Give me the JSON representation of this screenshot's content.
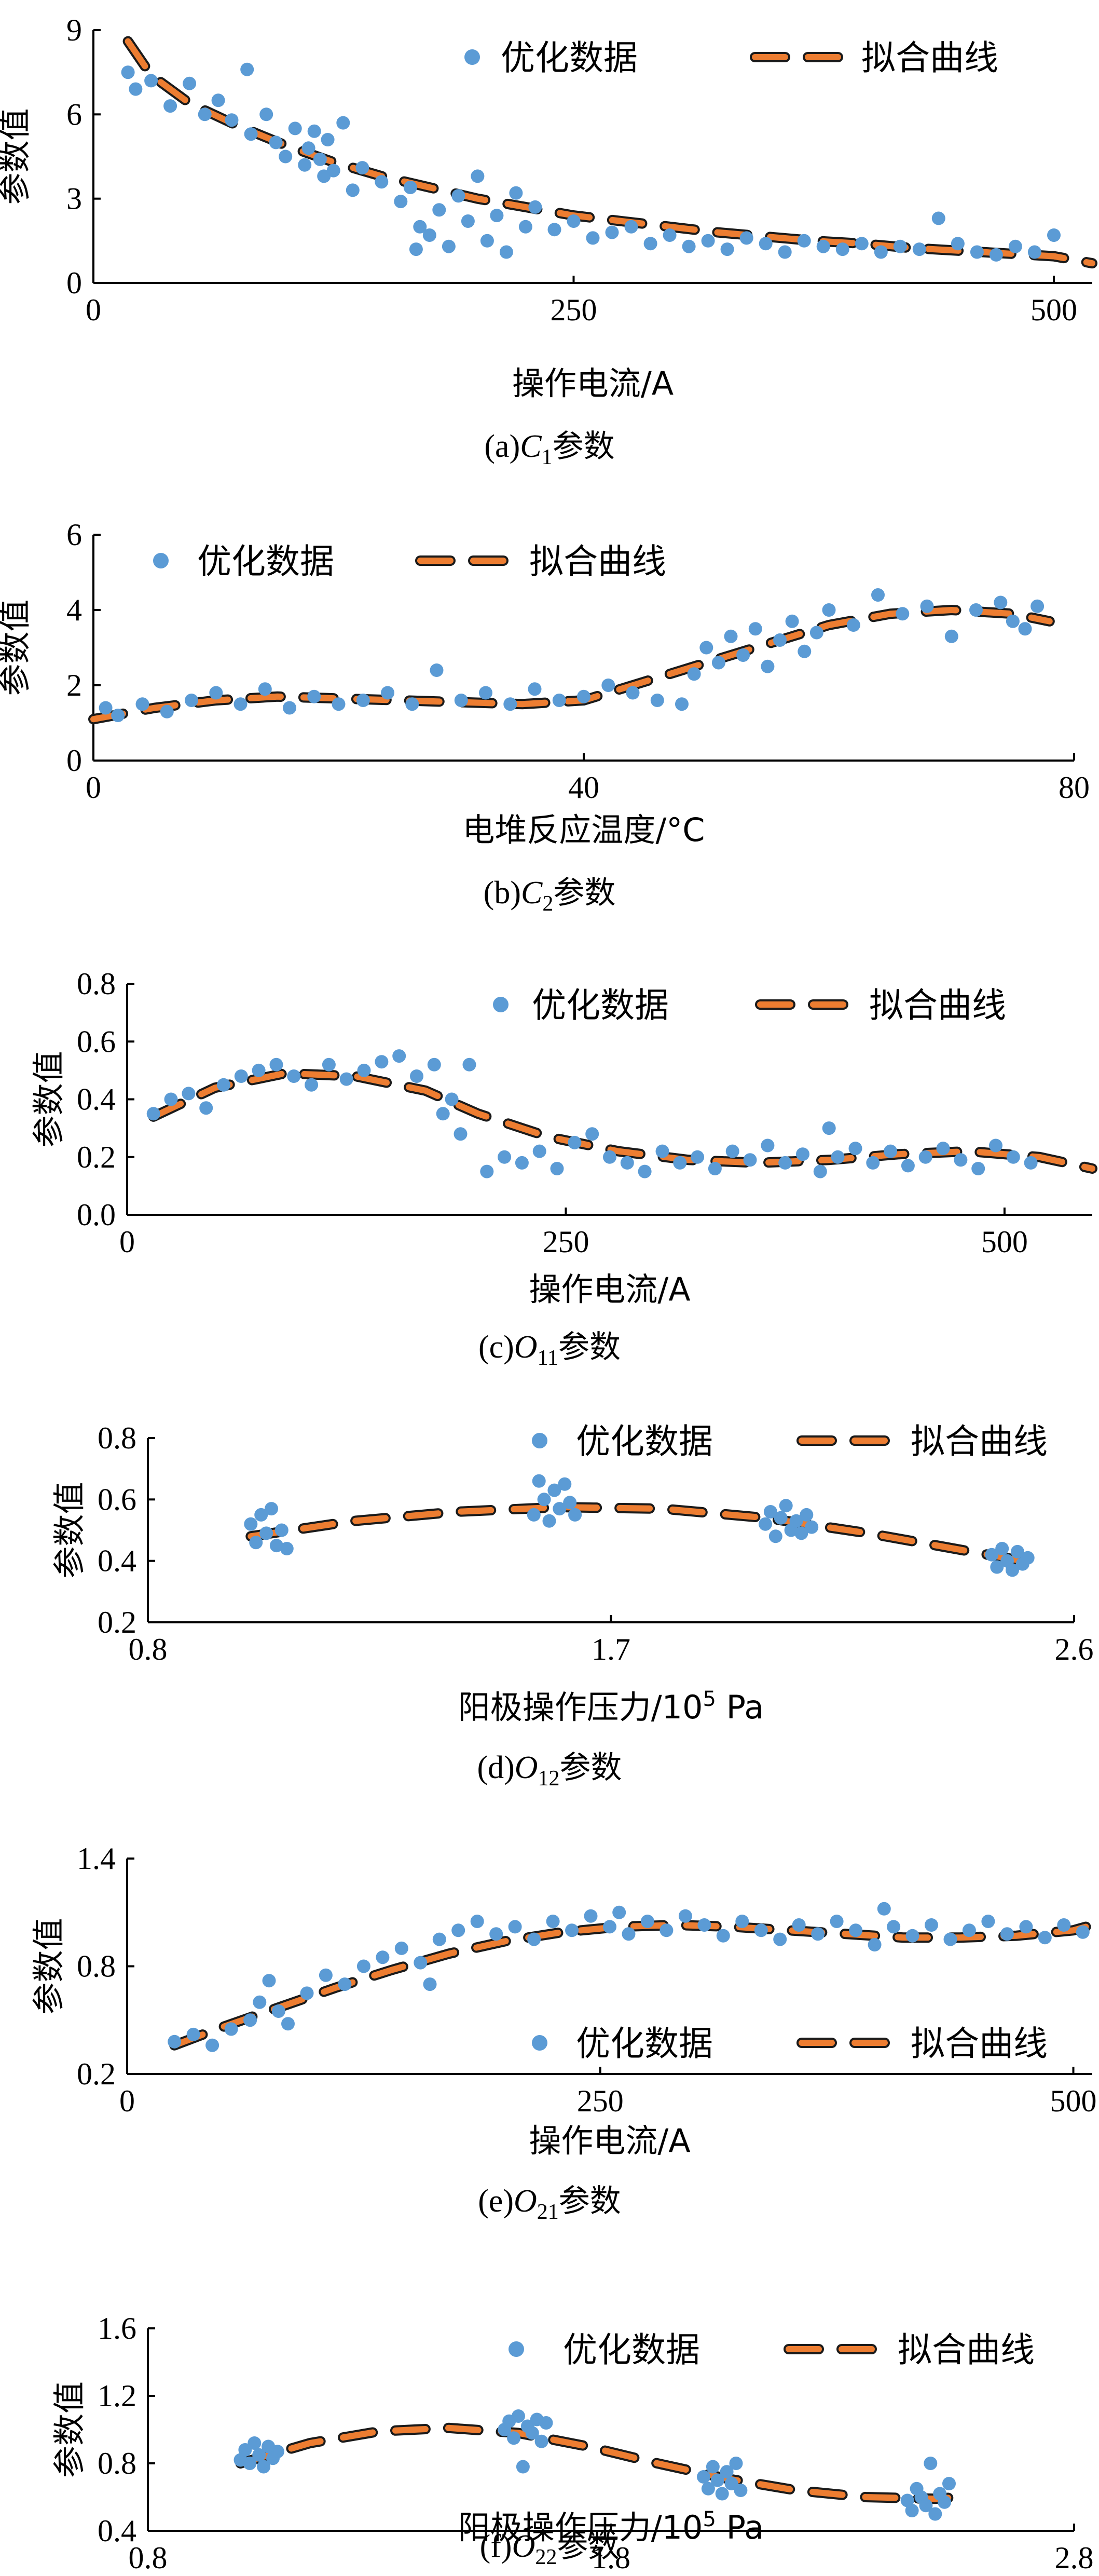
{
  "legend": {
    "points_label": "优化数据",
    "fit_label": "拟合曲线"
  },
  "colors": {
    "points": "#5b9bd5",
    "fit": "#ed7d31",
    "fit_outline": "#1a1a1a"
  },
  "chart_data": [
    {
      "type": "scatter",
      "caption": {
        "prefix": "(a)",
        "sym": "C",
        "sub": "1",
        "suffix": "参数"
      },
      "xlabel": {
        "text": "操作电流/A"
      },
      "ylabel": "参数值",
      "xlim": [
        0,
        520
      ],
      "ylim": [
        0,
        9
      ],
      "xticks": [
        0,
        250,
        500
      ],
      "xtick_labels": [
        "0",
        "250",
        "500"
      ],
      "yticks": [
        0,
        3,
        6,
        9
      ],
      "ytick_labels": [
        "0",
        "3",
        "6",
        "9"
      ],
      "legend_position": "top-right",
      "series": [
        {
          "name": "优化数据",
          "kind": "points",
          "x": [
            18,
            22,
            30,
            40,
            50,
            58,
            65,
            72,
            80,
            82,
            90,
            95,
            100,
            105,
            110,
            112,
            115,
            118,
            120,
            122,
            125,
            130,
            135,
            140,
            150,
            160,
            165,
            168,
            170,
            175,
            180,
            185,
            190,
            195,
            200,
            205,
            210,
            215,
            220,
            225,
            230,
            240,
            250,
            260,
            270,
            280,
            290,
            300,
            310,
            320,
            330,
            340,
            350,
            360,
            370,
            380,
            390,
            400,
            410,
            420,
            430,
            440,
            450,
            460,
            470,
            480,
            490,
            500
          ],
          "y": [
            7.5,
            6.9,
            7.2,
            6.3,
            7.1,
            6.0,
            6.5,
            5.8,
            7.6,
            5.3,
            6.0,
            5.0,
            4.5,
            5.5,
            4.2,
            4.8,
            5.4,
            4.4,
            3.8,
            5.1,
            4.0,
            5.7,
            3.3,
            4.1,
            3.6,
            2.9,
            3.4,
            1.2,
            2.0,
            1.7,
            2.6,
            1.3,
            3.1,
            2.2,
            3.8,
            1.5,
            2.4,
            1.1,
            3.2,
            2.0,
            2.7,
            1.9,
            2.2,
            1.6,
            1.8,
            2.0,
            1.4,
            1.7,
            1.3,
            1.5,
            1.2,
            1.6,
            1.4,
            1.1,
            1.5,
            1.3,
            1.2,
            1.4,
            1.1,
            1.3,
            1.2,
            2.3,
            1.4,
            1.1,
            1.0,
            1.3,
            1.1,
            1.7
          ]
        },
        {
          "name": "拟合曲线",
          "kind": "fit",
          "x": [
            18,
            30,
            50,
            75,
            100,
            125,
            150,
            175,
            200,
            225,
            250,
            275,
            300,
            325,
            350,
            375,
            400,
            425,
            450,
            475,
            500,
            520
          ],
          "y": [
            8.6,
            7.4,
            6.4,
            5.6,
            4.9,
            4.3,
            3.8,
            3.4,
            3.0,
            2.7,
            2.4,
            2.2,
            2.0,
            1.8,
            1.65,
            1.5,
            1.4,
            1.25,
            1.15,
            1.05,
            0.95,
            0.7
          ]
        }
      ]
    },
    {
      "type": "scatter",
      "caption": {
        "prefix": "(b)",
        "sym": "C",
        "sub": "2",
        "suffix": "参数"
      },
      "xlabel": {
        "text": "电堆反应温度/°C"
      },
      "ylabel": "参数值",
      "xlim": [
        0,
        80
      ],
      "ylim": [
        0,
        6
      ],
      "xticks": [
        0,
        40,
        80
      ],
      "xtick_labels": [
        "0",
        "40",
        "80"
      ],
      "yticks": [
        0,
        2,
        4,
        6
      ],
      "ytick_labels": [
        "0",
        "2",
        "4",
        "6"
      ],
      "legend_position": "top",
      "series": [
        {
          "name": "优化数据",
          "kind": "points",
          "x": [
            1,
            2,
            4,
            6,
            8,
            10,
            12,
            14,
            16,
            18,
            20,
            22,
            24,
            26,
            28,
            30,
            32,
            34,
            36,
            38,
            40,
            42,
            44,
            46,
            48,
            49,
            50,
            51,
            52,
            53,
            54,
            55,
            56,
            57,
            58,
            59,
            60,
            62,
            64,
            66,
            68,
            70,
            72,
            74,
            75,
            76,
            77
          ],
          "y": [
            1.4,
            1.2,
            1.5,
            1.3,
            1.6,
            1.8,
            1.5,
            1.9,
            1.4,
            1.7,
            1.5,
            1.6,
            1.8,
            1.5,
            2.4,
            1.6,
            1.8,
            1.5,
            1.9,
            1.6,
            1.7,
            2.0,
            1.8,
            1.6,
            1.5,
            2.3,
            3.0,
            2.6,
            3.3,
            2.8,
            3.5,
            2.5,
            3.2,
            3.7,
            2.9,
            3.4,
            4.0,
            3.6,
            4.4,
            3.9,
            4.1,
            3.3,
            4.0,
            4.2,
            3.7,
            3.5,
            4.1
          ]
        },
        {
          "name": "拟合曲线",
          "kind": "fit",
          "x": [
            0,
            5,
            10,
            15,
            20,
            25,
            30,
            35,
            40,
            42,
            45,
            50,
            55,
            60,
            65,
            70,
            75,
            78
          ],
          "y": [
            1.1,
            1.4,
            1.6,
            1.7,
            1.65,
            1.6,
            1.55,
            1.5,
            1.6,
            1.8,
            2.1,
            2.6,
            3.1,
            3.6,
            3.9,
            4.0,
            3.9,
            3.7
          ]
        }
      ]
    },
    {
      "type": "scatter",
      "caption": {
        "prefix": "(c)",
        "sym": "O",
        "sub": "11",
        "suffix": "参数"
      },
      "xlabel": {
        "text": "操作电流/A"
      },
      "ylabel": "参数值",
      "xlim": [
        0,
        550
      ],
      "ylim": [
        0,
        0.8
      ],
      "xticks": [
        0,
        250,
        500
      ],
      "xtick_labels": [
        "0",
        "250",
        "500"
      ],
      "yticks": [
        0,
        0.2,
        0.4,
        0.6,
        0.8
      ],
      "ytick_labels": [
        "0.0",
        "0.2",
        "0.4",
        "0.6",
        "0.8"
      ],
      "legend_position": "top-right",
      "series": [
        {
          "name": "优化数据",
          "kind": "points",
          "x": [
            15,
            25,
            35,
            45,
            55,
            65,
            75,
            85,
            95,
            105,
            115,
            125,
            135,
            145,
            155,
            165,
            175,
            180,
            185,
            190,
            195,
            205,
            215,
            225,
            235,
            245,
            255,
            265,
            275,
            285,
            295,
            305,
            315,
            325,
            335,
            345,
            355,
            365,
            375,
            385,
            395,
            400,
            405,
            415,
            425,
            435,
            445,
            455,
            465,
            475,
            485,
            495,
            505,
            515
          ],
          "y": [
            0.35,
            0.4,
            0.42,
            0.37,
            0.45,
            0.48,
            0.5,
            0.52,
            0.48,
            0.45,
            0.52,
            0.47,
            0.5,
            0.53,
            0.55,
            0.48,
            0.52,
            0.35,
            0.4,
            0.28,
            0.52,
            0.15,
            0.2,
            0.18,
            0.22,
            0.16,
            0.25,
            0.28,
            0.2,
            0.18,
            0.15,
            0.22,
            0.18,
            0.2,
            0.16,
            0.22,
            0.19,
            0.24,
            0.18,
            0.21,
            0.15,
            0.3,
            0.2,
            0.23,
            0.18,
            0.22,
            0.17,
            0.2,
            0.23,
            0.19,
            0.16,
            0.24,
            0.2,
            0.18
          ]
        },
        {
          "name": "拟合曲线",
          "kind": "fit",
          "x": [
            15,
            50,
            90,
            130,
            170,
            200,
            240,
            280,
            320,
            360,
            400,
            440,
            480,
            520,
            550
          ],
          "y": [
            0.34,
            0.44,
            0.49,
            0.48,
            0.43,
            0.35,
            0.27,
            0.22,
            0.19,
            0.18,
            0.19,
            0.21,
            0.22,
            0.2,
            0.16
          ]
        }
      ]
    },
    {
      "type": "scatter",
      "caption": {
        "prefix": "(d)",
        "sym": "O",
        "sub": "12",
        "suffix": "参数"
      },
      "xlabel": {
        "text": "阳极操作压力/10",
        "sup": "5",
        "unit": " Pa"
      },
      "ylabel": "参数值",
      "xlim": [
        0.8,
        2.6
      ],
      "ylim": [
        0.2,
        0.8
      ],
      "xticks": [
        0.8,
        1.7,
        2.6
      ],
      "xtick_labels": [
        "0.8",
        "1.7",
        "2.6"
      ],
      "yticks": [
        0.2,
        0.4,
        0.6,
        0.8
      ],
      "ytick_labels": [
        "0.2",
        "0.4",
        "0.6",
        "0.8"
      ],
      "legend_position": "top-right",
      "series": [
        {
          "name": "优化数据",
          "kind": "points",
          "x": [
            1.0,
            1.01,
            1.02,
            1.03,
            1.04,
            1.05,
            1.06,
            1.07,
            1.55,
            1.56,
            1.57,
            1.58,
            1.59,
            1.6,
            1.61,
            1.62,
            1.63,
            2.0,
            2.01,
            2.02,
            2.03,
            2.04,
            2.05,
            2.06,
            2.07,
            2.08,
            2.09,
            2.44,
            2.45,
            2.46,
            2.47,
            2.48,
            2.49,
            2.5,
            2.51
          ],
          "y": [
            0.52,
            0.46,
            0.55,
            0.49,
            0.57,
            0.45,
            0.5,
            0.44,
            0.55,
            0.66,
            0.6,
            0.53,
            0.63,
            0.57,
            0.65,
            0.59,
            0.55,
            0.52,
            0.56,
            0.48,
            0.54,
            0.58,
            0.5,
            0.53,
            0.49,
            0.55,
            0.51,
            0.42,
            0.38,
            0.44,
            0.4,
            0.37,
            0.43,
            0.39,
            0.41
          ]
        },
        {
          "name": "拟合曲线",
          "kind": "fit",
          "x": [
            1.0,
            1.2,
            1.4,
            1.6,
            1.8,
            2.0,
            2.2,
            2.4,
            2.5
          ],
          "y": [
            0.48,
            0.53,
            0.56,
            0.575,
            0.57,
            0.54,
            0.49,
            0.43,
            0.4
          ]
        }
      ]
    },
    {
      "type": "scatter",
      "caption": {
        "prefix": "(e)",
        "sym": "O",
        "sub": "21",
        "suffix": "参数"
      },
      "xlabel": {
        "text": "操作电流/A"
      },
      "ylabel": "参数值",
      "xlim": [
        0,
        510
      ],
      "ylim": [
        0.2,
        1.4
      ],
      "xticks": [
        0,
        250,
        500
      ],
      "xtick_labels": [
        "0",
        "250",
        "500"
      ],
      "yticks": [
        0.2,
        0.8,
        1.4
      ],
      "ytick_labels": [
        "0.2",
        "0.8",
        "1.4"
      ],
      "legend_position": "bottom-right",
      "series": [
        {
          "name": "优化数据",
          "kind": "points",
          "x": [
            25,
            35,
            45,
            55,
            65,
            70,
            75,
            80,
            85,
            95,
            105,
            115,
            125,
            135,
            145,
            155,
            160,
            165,
            175,
            185,
            195,
            205,
            215,
            225,
            235,
            245,
            255,
            260,
            265,
            275,
            285,
            295,
            305,
            315,
            325,
            335,
            345,
            355,
            365,
            375,
            385,
            395,
            400,
            405,
            415,
            425,
            435,
            445,
            455,
            465,
            475,
            485,
            495,
            505
          ],
          "y": [
            0.38,
            0.42,
            0.36,
            0.45,
            0.5,
            0.6,
            0.72,
            0.55,
            0.48,
            0.65,
            0.75,
            0.7,
            0.8,
            0.85,
            0.9,
            0.82,
            0.7,
            0.95,
            1.0,
            1.05,
            0.98,
            1.02,
            0.95,
            1.05,
            1.0,
            1.08,
            1.02,
            1.1,
            0.98,
            1.05,
            1.0,
            1.08,
            1.03,
            0.97,
            1.05,
            1.0,
            0.95,
            1.03,
            0.98,
            1.05,
            1.0,
            0.92,
            1.12,
            1.02,
            0.97,
            1.03,
            0.95,
            1.0,
            1.05,
            0.98,
            1.02,
            0.96,
            1.03,
            0.99
          ]
        },
        {
          "name": "拟合曲线",
          "kind": "fit",
          "x": [
            25,
            50,
            80,
            110,
            140,
            170,
            200,
            230,
            260,
            290,
            320,
            350,
            380,
            410,
            440,
            470,
            500,
            510
          ],
          "y": [
            0.36,
            0.46,
            0.57,
            0.68,
            0.78,
            0.87,
            0.94,
            0.99,
            1.02,
            1.03,
            1.02,
            1.0,
            0.98,
            0.96,
            0.96,
            0.97,
            1.0,
            1.03
          ]
        }
      ]
    },
    {
      "type": "scatter",
      "caption": {
        "prefix": "(f)",
        "sym": "O",
        "sub": "22",
        "suffix": "参数"
      },
      "xlabel": {
        "text": "阳极操作压力/10",
        "sup": "5",
        "unit": " Pa"
      },
      "ylabel": "参数值",
      "xlim": [
        0.8,
        2.8
      ],
      "ylim": [
        0.4,
        1.6
      ],
      "xticks": [
        0.8,
        1.8,
        2.8
      ],
      "xtick_labels": [
        "0.8",
        "1.8",
        "2.8"
      ],
      "yticks": [
        0.4,
        0.8,
        1.2,
        1.6
      ],
      "ytick_labels": [
        "0.4",
        "0.8",
        "1.2",
        "1.6"
      ],
      "legend_position": "top-right",
      "series": [
        {
          "name": "优化数据",
          "kind": "points",
          "x": [
            1.0,
            1.01,
            1.02,
            1.03,
            1.04,
            1.05,
            1.06,
            1.07,
            1.08,
            1.57,
            1.58,
            1.59,
            1.6,
            1.61,
            1.62,
            1.63,
            1.64,
            1.65,
            1.66,
            2.0,
            2.01,
            2.02,
            2.03,
            2.04,
            2.05,
            2.06,
            2.07,
            2.08,
            2.44,
            2.45,
            2.46,
            2.47,
            2.48,
            2.49,
            2.5,
            2.51,
            2.52,
            2.53
          ],
          "y": [
            0.82,
            0.88,
            0.8,
            0.92,
            0.85,
            0.78,
            0.9,
            0.83,
            0.87,
            1.0,
            1.05,
            0.95,
            1.08,
            0.78,
            1.02,
            0.98,
            1.06,
            0.93,
            1.04,
            0.72,
            0.65,
            0.78,
            0.7,
            0.62,
            0.75,
            0.68,
            0.8,
            0.64,
            0.58,
            0.52,
            0.65,
            0.6,
            0.55,
            0.8,
            0.5,
            0.62,
            0.57,
            0.68
          ]
        },
        {
          "name": "拟合曲线",
          "kind": "fit",
          "x": [
            1.0,
            1.15,
            1.3,
            1.45,
            1.6,
            1.75,
            1.9,
            2.05,
            2.2,
            2.35,
            2.5,
            2.55
          ],
          "y": [
            0.8,
            0.92,
            0.99,
            1.01,
            0.98,
            0.9,
            0.8,
            0.71,
            0.64,
            0.6,
            0.59,
            0.6
          ]
        }
      ]
    }
  ]
}
